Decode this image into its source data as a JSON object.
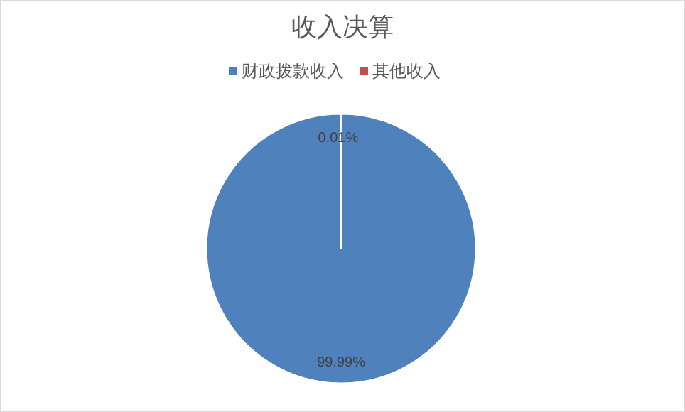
{
  "chart_data": {
    "type": "pie",
    "title": "收入决算",
    "categories": [
      "财政拨款收入",
      "其他收入"
    ],
    "values": [
      99.99,
      0.01
    ],
    "colors": [
      "#4f81bd",
      "#c0504d"
    ],
    "value_labels": [
      "99.99%",
      "0.01%"
    ],
    "legend": "top"
  }
}
